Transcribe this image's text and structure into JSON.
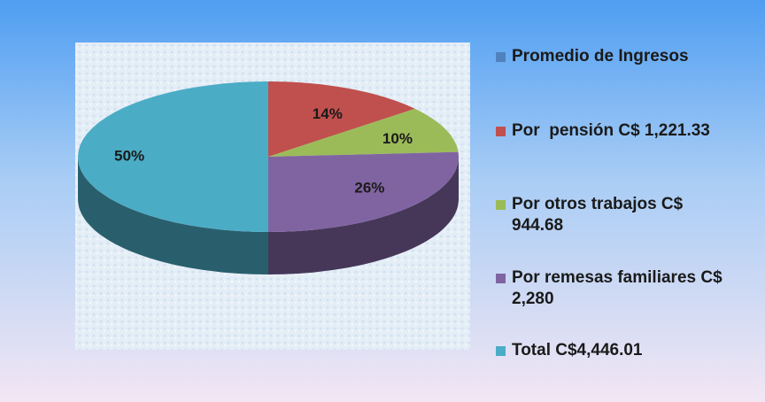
{
  "chart_data": {
    "type": "pie",
    "categories": [
      "Promedio de Ingresos",
      "Por  pensión C$ 1,221.33",
      "Por otros trabajos C$ 944.68",
      "Por remesas familiares C$ 2,280",
      "Total C$4,446.01"
    ],
    "values": [
      null,
      14,
      10,
      26,
      50
    ],
    "value_labels": [
      null,
      "14%",
      "10%",
      "26%",
      "50%"
    ],
    "colors": [
      "#4f81bd",
      "#c0504d",
      "#9bbb59",
      "#8064a2",
      "#4bacc6"
    ]
  }
}
